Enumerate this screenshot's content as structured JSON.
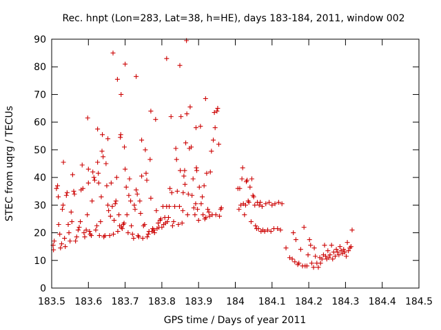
{
  "chart_data": {
    "type": "scatter",
    "title": "Rec. hnpt (Lon=283, Lat=38, h=HE), days 183-184, 2011, window 002",
    "xlabel": "GPS time / Days of year 2011",
    "ylabel": "STEC from uqrg / TECUs",
    "xlim": [
      183.5,
      184.5
    ],
    "ylim": [
      0,
      90
    ],
    "xticks": [
      183.5,
      183.6,
      183.7,
      183.8,
      183.9,
      184.0,
      184.1,
      184.2,
      184.3,
      184.4,
      184.5
    ],
    "xtick_labels": [
      "183.5",
      "183.6",
      "183.7",
      "183.8",
      "183.9",
      "184",
      "184.1",
      "184.2",
      "184.3",
      "184.4",
      "184.5"
    ],
    "yticks": [
      0,
      10,
      20,
      30,
      40,
      50,
      60,
      70,
      80,
      90
    ],
    "ytick_labels": [
      "0",
      "10",
      "20",
      "30",
      "40",
      "50",
      "60",
      "70",
      "80",
      "90"
    ],
    "grid": false,
    "legend": "none",
    "marker": "plus",
    "color": "#cc0000",
    "points": [
      [
        183.504,
        15.5
      ],
      [
        183.505,
        13.8
      ],
      [
        183.507,
        17.0
      ],
      [
        183.513,
        36.0
      ],
      [
        183.516,
        37.0
      ],
      [
        183.518,
        33.0
      ],
      [
        183.519,
        23.0
      ],
      [
        183.522,
        19.5
      ],
      [
        183.524,
        14.5
      ],
      [
        183.527,
        16.0
      ],
      [
        183.529,
        28.5
      ],
      [
        183.531,
        30.0
      ],
      [
        183.532,
        45.5
      ],
      [
        183.535,
        18.0
      ],
      [
        183.537,
        15.0
      ],
      [
        183.54,
        33.5
      ],
      [
        183.542,
        34.5
      ],
      [
        183.545,
        23.0
      ],
      [
        183.547,
        20.0
      ],
      [
        183.55,
        17.0
      ],
      [
        183.553,
        27.5
      ],
      [
        183.555,
        24.0
      ],
      [
        183.557,
        41.0
      ],
      [
        183.56,
        35.0
      ],
      [
        183.562,
        34.0
      ],
      [
        183.565,
        17.0
      ],
      [
        183.568,
        18.5
      ],
      [
        183.572,
        21.0
      ],
      [
        183.575,
        22.0
      ],
      [
        183.578,
        24.0
      ],
      [
        183.58,
        35.5
      ],
      [
        183.583,
        44.5
      ],
      [
        183.585,
        36.0
      ],
      [
        183.588,
        20.0
      ],
      [
        183.59,
        18.5
      ],
      [
        183.594,
        21.0
      ],
      [
        183.597,
        26.5
      ],
      [
        183.6,
        43.0
      ],
      [
        183.598,
        61.5
      ],
      [
        183.6,
        38.0
      ],
      [
        183.603,
        20.5
      ],
      [
        183.605,
        19.5
      ],
      [
        183.608,
        19.0
      ],
      [
        183.61,
        31.5
      ],
      [
        183.612,
        42.0
      ],
      [
        183.615,
        40.0
      ],
      [
        183.617,
        39.0
      ],
      [
        183.62,
        21.0
      ],
      [
        183.623,
        22.5
      ],
      [
        183.625,
        45.5
      ],
      [
        183.627,
        41.5
      ],
      [
        183.625,
        57.5
      ],
      [
        183.628,
        38.0
      ],
      [
        183.63,
        19.0
      ],
      [
        183.633,
        24.0
      ],
      [
        183.635,
        33.0
      ],
      [
        183.637,
        49.5
      ],
      [
        183.638,
        55.5
      ],
      [
        183.64,
        47.5
      ],
      [
        183.642,
        18.5
      ],
      [
        183.645,
        19.0
      ],
      [
        183.648,
        45.0
      ],
      [
        183.65,
        37.0
      ],
      [
        183.653,
        54.0
      ],
      [
        183.653,
        30.0
      ],
      [
        183.655,
        28.0
      ],
      [
        183.658,
        19.0
      ],
      [
        183.66,
        26.0
      ],
      [
        183.662,
        38.0
      ],
      [
        183.665,
        29.5
      ],
      [
        183.667,
        85.0
      ],
      [
        183.668,
        19.5
      ],
      [
        183.67,
        24.5
      ],
      [
        183.673,
        30.5
      ],
      [
        183.675,
        31.5
      ],
      [
        183.677,
        40.0
      ],
      [
        183.679,
        75.5
      ],
      [
        183.68,
        20.5
      ],
      [
        183.683,
        26.5
      ],
      [
        183.685,
        22.5
      ],
      [
        183.687,
        54.5
      ],
      [
        183.688,
        55.5
      ],
      [
        183.689,
        70.0
      ],
      [
        183.69,
        22.0
      ],
      [
        183.692,
        21.5
      ],
      [
        183.695,
        23.0
      ],
      [
        183.697,
        23.5
      ],
      [
        183.698,
        51.0
      ],
      [
        183.7,
        81.0
      ],
      [
        183.7,
        43.0
      ],
      [
        183.703,
        36.5
      ],
      [
        183.705,
        26.5
      ],
      [
        183.708,
        20.0
      ],
      [
        183.71,
        33.5
      ],
      [
        183.712,
        39.5
      ],
      [
        183.715,
        31.5
      ],
      [
        183.717,
        22.5
      ],
      [
        183.72,
        19.5
      ],
      [
        183.723,
        18.0
      ],
      [
        183.725,
        30.0
      ],
      [
        183.727,
        28.5
      ],
      [
        183.73,
        35.5
      ],
      [
        183.73,
        76.5
      ],
      [
        183.733,
        34.0
      ],
      [
        183.735,
        19.0
      ],
      [
        183.737,
        18.5
      ],
      [
        183.74,
        31.5
      ],
      [
        183.742,
        27.0
      ],
      [
        183.745,
        40.5
      ],
      [
        183.745,
        53.5
      ],
      [
        183.748,
        18.0
      ],
      [
        183.75,
        22.5
      ],
      [
        183.753,
        23.0
      ],
      [
        183.755,
        50.0
      ],
      [
        183.757,
        41.5
      ],
      [
        183.759,
        39.0
      ],
      [
        183.76,
        18.5
      ],
      [
        183.763,
        19.5
      ],
      [
        183.765,
        20.5
      ],
      [
        183.768,
        46.5
      ],
      [
        183.77,
        32.5
      ],
      [
        183.77,
        64.0
      ],
      [
        183.773,
        20.5
      ],
      [
        183.775,
        21.5
      ],
      [
        183.778,
        21.0
      ],
      [
        183.78,
        20.0
      ],
      [
        183.783,
        61.0
      ],
      [
        183.785,
        28.0
      ],
      [
        183.787,
        21.5
      ],
      [
        183.79,
        23.5
      ],
      [
        183.792,
        22.0
      ],
      [
        183.795,
        24.5
      ],
      [
        183.797,
        25.0
      ],
      [
        183.8,
        22.0
      ],
      [
        183.803,
        29.5
      ],
      [
        183.805,
        23.0
      ],
      [
        183.808,
        25.5
      ],
      [
        183.81,
        23.5
      ],
      [
        183.813,
        29.5
      ],
      [
        183.813,
        83.0
      ],
      [
        183.815,
        24.0
      ],
      [
        183.818,
        25.5
      ],
      [
        183.82,
        29.5
      ],
      [
        183.822,
        36.0
      ],
      [
        183.825,
        62.0
      ],
      [
        183.827,
        34.5
      ],
      [
        183.829,
        22.5
      ],
      [
        183.832,
        24.0
      ],
      [
        183.835,
        29.5
      ],
      [
        183.838,
        50.5
      ],
      [
        183.84,
        46.5
      ],
      [
        183.842,
        35.0
      ],
      [
        183.845,
        23.0
      ],
      [
        183.848,
        29.5
      ],
      [
        183.849,
        80.5
      ],
      [
        183.85,
        42.5
      ],
      [
        183.852,
        62.0
      ],
      [
        183.855,
        23.5
      ],
      [
        183.857,
        28.0
      ],
      [
        183.858,
        34.5
      ],
      [
        183.86,
        40.5
      ],
      [
        183.862,
        42.5
      ],
      [
        183.863,
        37.5
      ],
      [
        183.865,
        52.5
      ],
      [
        183.867,
        89.5
      ],
      [
        183.868,
        63.0
      ],
      [
        183.87,
        26.5
      ],
      [
        183.872,
        34.0
      ],
      [
        183.875,
        50.5
      ],
      [
        183.877,
        65.5
      ],
      [
        183.88,
        51.0
      ],
      [
        183.882,
        33.5
      ],
      [
        183.885,
        39.5
      ],
      [
        183.887,
        29.0
      ],
      [
        183.89,
        26.5
      ],
      [
        183.892,
        30.5
      ],
      [
        183.893,
        58.0
      ],
      [
        183.894,
        43.5
      ],
      [
        183.895,
        42.5
      ],
      [
        183.897,
        28.5
      ],
      [
        183.9,
        24.5
      ],
      [
        183.902,
        36.5
      ],
      [
        183.905,
        58.5
      ],
      [
        183.907,
        30.5
      ],
      [
        183.91,
        33.0
      ],
      [
        183.912,
        26.5
      ],
      [
        183.915,
        37.0
      ],
      [
        183.917,
        25.0
      ],
      [
        183.919,
        68.5
      ],
      [
        183.92,
        25.5
      ],
      [
        183.922,
        41.5
      ],
      [
        183.925,
        28.5
      ],
      [
        183.928,
        27.5
      ],
      [
        183.93,
        26.0
      ],
      [
        183.932,
        42.0
      ],
      [
        183.935,
        49.5
      ],
      [
        183.937,
        26.5
      ],
      [
        183.94,
        53.5
      ],
      [
        183.943,
        63.5
      ],
      [
        183.945,
        58.0
      ],
      [
        183.947,
        26.5
      ],
      [
        183.95,
        64.0
      ],
      [
        183.952,
        65.0
      ],
      [
        183.955,
        52.0
      ],
      [
        183.957,
        26.0
      ],
      [
        183.96,
        28.5
      ],
      [
        183.962,
        29.0
      ],
      [
        184.007,
        36.0
      ],
      [
        184.01,
        28.5
      ],
      [
        184.012,
        36.0
      ],
      [
        184.015,
        30.0
      ],
      [
        184.018,
        39.5
      ],
      [
        184.02,
        43.5
      ],
      [
        184.022,
        30.5
      ],
      [
        184.025,
        26.5
      ],
      [
        184.028,
        30.0
      ],
      [
        184.03,
        38.5
      ],
      [
        184.032,
        39.0
      ],
      [
        184.035,
        31.5
      ],
      [
        184.037,
        31.0
      ],
      [
        184.04,
        36.5
      ],
      [
        184.043,
        24.0
      ],
      [
        184.045,
        39.5
      ],
      [
        184.048,
        33.5
      ],
      [
        184.05,
        33.0
      ],
      [
        184.053,
        30.0
      ],
      [
        184.055,
        22.5
      ],
      [
        184.058,
        21.5
      ],
      [
        184.06,
        31.0
      ],
      [
        184.063,
        21.5
      ],
      [
        184.065,
        30.0
      ],
      [
        184.068,
        31.0
      ],
      [
        184.07,
        20.5
      ],
      [
        184.073,
        29.5
      ],
      [
        184.075,
        21.0
      ],
      [
        184.08,
        20.5
      ],
      [
        184.083,
        30.5
      ],
      [
        184.088,
        21.0
      ],
      [
        184.092,
        31.0
      ],
      [
        184.097,
        20.5
      ],
      [
        184.1,
        30.0
      ],
      [
        184.105,
        21.5
      ],
      [
        184.108,
        30.5
      ],
      [
        184.115,
        21.5
      ],
      [
        184.118,
        31.0
      ],
      [
        184.123,
        21.0
      ],
      [
        184.127,
        30.5
      ],
      [
        184.138,
        14.5
      ],
      [
        184.148,
        11.0
      ],
      [
        184.155,
        10.5
      ],
      [
        184.158,
        20.0
      ],
      [
        184.162,
        9.5
      ],
      [
        184.165,
        17.5
      ],
      [
        184.17,
        8.5
      ],
      [
        184.173,
        9.0
      ],
      [
        184.178,
        14.0
      ],
      [
        184.183,
        8.0
      ],
      [
        184.187,
        22.0
      ],
      [
        184.19,
        8.0
      ],
      [
        184.195,
        8.0
      ],
      [
        184.198,
        12.0
      ],
      [
        184.202,
        17.5
      ],
      [
        184.205,
        15.5
      ],
      [
        184.208,
        9.0
      ],
      [
        184.213,
        7.5
      ],
      [
        184.215,
        14.5
      ],
      [
        184.218,
        11.5
      ],
      [
        184.222,
        9.0
      ],
      [
        184.226,
        7.5
      ],
      [
        184.23,
        11.0
      ],
      [
        184.232,
        9.0
      ],
      [
        184.236,
        10.5
      ],
      [
        184.24,
        12.0
      ],
      [
        184.243,
        15.5
      ],
      [
        184.246,
        11.5
      ],
      [
        184.249,
        10.5
      ],
      [
        184.252,
        13.5
      ],
      [
        184.255,
        11.0
      ],
      [
        184.258,
        12.0
      ],
      [
        184.262,
        15.5
      ],
      [
        184.265,
        10.5
      ],
      [
        184.268,
        13.0
      ],
      [
        184.272,
        11.5
      ],
      [
        184.275,
        14.0
      ],
      [
        184.278,
        13.0
      ],
      [
        184.282,
        12.0
      ],
      [
        184.285,
        15.0
      ],
      [
        184.288,
        13.5
      ],
      [
        184.292,
        12.5
      ],
      [
        184.295,
        14.0
      ],
      [
        184.298,
        13.0
      ],
      [
        184.302,
        11.5
      ],
      [
        184.305,
        16.5
      ],
      [
        184.308,
        13.5
      ],
      [
        184.312,
        14.5
      ],
      [
        184.315,
        15.0
      ],
      [
        184.318,
        21.0
      ]
    ]
  }
}
